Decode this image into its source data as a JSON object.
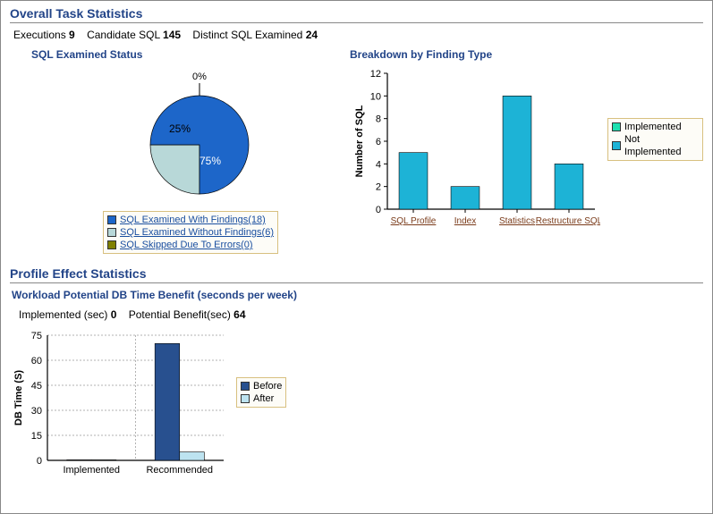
{
  "overall": {
    "title": "Overall Task Statistics",
    "executions_label": "Executions",
    "executions_value": "9",
    "candidate_label": "Candidate SQL",
    "candidate_value": "145",
    "distinct_label": "Distinct SQL Examined",
    "distinct_value": "24"
  },
  "pie": {
    "title": "SQL Examined Status",
    "slices": {
      "with_findings": {
        "label": "SQL Examined With Findings(18)",
        "pct": 75,
        "color": "#1d66c9",
        "text_color": "#ffffff"
      },
      "without_findings": {
        "label": "SQL Examined Without Findings(6)",
        "pct": 25,
        "color": "#b8d8d8",
        "text_color": "#000000"
      },
      "skipped": {
        "label": "SQL Skipped Due To Errors(0)",
        "pct": 0,
        "color": "#808000",
        "text_color": "#000000"
      }
    },
    "zero_callout": "0%",
    "label_75": "75%",
    "label_25": "25%"
  },
  "findings": {
    "title": "Breakdown by Finding Type",
    "y_label": "Number of SQL",
    "y_max": 12,
    "y_step": 2,
    "categories": [
      {
        "label": "SQL Profile",
        "value": 5
      },
      {
        "label": "Index",
        "value": 2
      },
      {
        "label": "Statistics",
        "value": 10
      },
      {
        "label": "Restructure SQL",
        "value": 4
      }
    ],
    "bar_color": "#1db3d6",
    "legend": {
      "implemented": {
        "label": "Implemented",
        "color": "#1de0b0"
      },
      "not_implemented": {
        "label": "Not Implemented",
        "color": "#1db3d6"
      }
    },
    "axis_color": "#000000",
    "tick_color": "#000000"
  },
  "profile": {
    "title": "Profile Effect Statistics",
    "sub_title": "Workload Potential DB Time Benefit (seconds per week)",
    "implemented_label": "Implemented (sec)",
    "implemented_value": "0",
    "potential_label": "Potential Benefit(sec)",
    "potential_value": "64"
  },
  "dbtime": {
    "y_label": "DB Time (S)",
    "y_max": 75,
    "y_step": 15,
    "groups": [
      {
        "label": "Implemented",
        "before": 0.3,
        "after": 0.3
      },
      {
        "label": "Recommended",
        "before": 70,
        "after": 5
      }
    ],
    "colors": {
      "before": {
        "label": "Before",
        "color": "#28508f"
      },
      "after": {
        "label": "After",
        "color": "#bde3f0"
      }
    },
    "grid_color": "#666666"
  }
}
